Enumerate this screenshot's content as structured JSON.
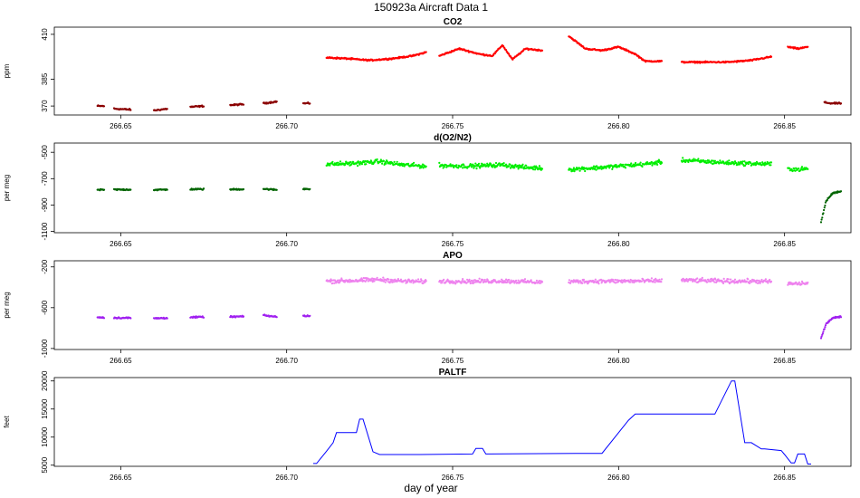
{
  "figure": {
    "title": "150923a   Aircraft Data 1",
    "xlabel": "day of year"
  },
  "chart_data": [
    {
      "type": "scatter",
      "title": "CO2",
      "ylabel": "ppm",
      "xlim": [
        266.63,
        266.87
      ],
      "ylim": [
        365,
        414
      ],
      "x_ticks": [
        "266.65",
        "266.70",
        "266.75",
        "266.80",
        "266.85"
      ],
      "y_ticks": [
        "370",
        "385",
        "410"
      ],
      "y_tick_values": [
        370,
        385,
        410
      ],
      "segments": [
        {
          "x": [
            266.643,
            266.645
          ],
          "y": [
            370,
            370
          ],
          "color": "#8b0000"
        },
        {
          "x": [
            266.648,
            266.653
          ],
          "y": [
            368.5,
            368.0
          ],
          "color": "#8b0000"
        },
        {
          "x": [
            266.66,
            266.664
          ],
          "y": [
            367.5,
            368.5
          ],
          "color": "#8b0000"
        },
        {
          "x": [
            266.671,
            266.675
          ],
          "y": [
            369.5,
            370.0
          ],
          "color": "#8b0000"
        },
        {
          "x": [
            266.683,
            266.687
          ],
          "y": [
            370.5,
            371.0
          ],
          "color": "#8b0000"
        },
        {
          "x": [
            266.693,
            266.697
          ],
          "y": [
            371.5,
            372.5
          ],
          "color": "#8b0000"
        },
        {
          "x": [
            266.705,
            266.707
          ],
          "y": [
            371.5,
            371.5
          ],
          "color": "#8b0000"
        },
        {
          "x": [
            266.712,
            266.718,
            266.725,
            266.732,
            266.738,
            266.742
          ],
          "y": [
            397,
            396.5,
            395.5,
            396.5,
            398,
            400
          ],
          "color": "#ff0000"
        },
        {
          "x": [
            266.746,
            266.752,
            266.758,
            266.762,
            266.765,
            266.768,
            266.772,
            266.777
          ],
          "y": [
            398,
            402,
            399,
            398,
            404,
            396,
            402,
            401
          ],
          "color": "#ff0000"
        },
        {
          "x": [
            266.785,
            266.79,
            266.795,
            266.8,
            266.805,
            266.808,
            266.813
          ],
          "y": [
            409,
            402,
            401,
            403,
            399,
            395,
            395
          ],
          "color": "#ff0000"
        },
        {
          "x": [
            266.819,
            266.826,
            266.833,
            266.84,
            266.846
          ],
          "y": [
            394.5,
            394.5,
            394.5,
            395.5,
            397.5
          ],
          "color": "#ff0000"
        },
        {
          "x": [
            266.851,
            266.854,
            266.857
          ],
          "y": [
            403,
            402,
            403
          ],
          "color": "#ff0000"
        },
        {
          "x": [
            266.862,
            266.864,
            266.867
          ],
          "y": [
            372,
            371.5,
            371.5
          ],
          "color": "#8b0000"
        }
      ]
    },
    {
      "type": "scatter",
      "title": "d(O2/N2)",
      "ylabel": "per meg",
      "xlim": [
        266.63,
        266.87
      ],
      "ylim": [
        -1110,
        -430
      ],
      "x_ticks": [
        "266.65",
        "266.70",
        "266.75",
        "266.80",
        "266.85"
      ],
      "y_ticks": [
        "-1100",
        "-900",
        "-700",
        "-500"
      ],
      "y_tick_values": [
        -1100,
        -900,
        -700,
        -500
      ],
      "segments": [
        {
          "x": [
            266.643,
            266.645
          ],
          "y": [
            -785,
            -785
          ],
          "color": "#006400"
        },
        {
          "x": [
            266.648,
            266.653
          ],
          "y": [
            -783,
            -783
          ],
          "color": "#006400"
        },
        {
          "x": [
            266.66,
            266.664
          ],
          "y": [
            -785,
            -783
          ],
          "color": "#006400"
        },
        {
          "x": [
            266.671,
            266.675
          ],
          "y": [
            -780,
            -780
          ],
          "color": "#006400"
        },
        {
          "x": [
            266.683,
            266.687
          ],
          "y": [
            -782,
            -780
          ],
          "color": "#006400"
        },
        {
          "x": [
            266.693,
            266.697
          ],
          "y": [
            -778,
            -785
          ],
          "color": "#006400"
        },
        {
          "x": [
            266.705,
            266.707
          ],
          "y": [
            -778,
            -778
          ],
          "color": "#006400"
        },
        {
          "x": [
            266.712,
            266.72,
            266.728,
            266.735,
            266.742
          ],
          "y": [
            -590,
            -585,
            -570,
            -595,
            -605
          ],
          "color": "#00ee00"
        },
        {
          "x": [
            266.746,
            266.755,
            266.765,
            266.772,
            266.777
          ],
          "y": [
            -600,
            -605,
            -595,
            -615,
            -620
          ],
          "color": "#00ee00"
        },
        {
          "x": [
            266.785,
            266.792,
            266.8,
            266.808,
            266.813
          ],
          "y": [
            -630,
            -620,
            -605,
            -590,
            -575
          ],
          "color": "#00ee00"
        },
        {
          "x": [
            266.819,
            266.826,
            266.833,
            266.84,
            266.846
          ],
          "y": [
            -560,
            -570,
            -580,
            -585,
            -590
          ],
          "color": "#00ee00"
        },
        {
          "x": [
            266.851,
            266.854,
            266.857
          ],
          "y": [
            -625,
            -630,
            -625
          ],
          "color": "#00ee00"
        },
        {
          "x": [
            266.861,
            266.8625,
            266.8645,
            266.867
          ],
          "y": [
            -1030,
            -870,
            -810,
            -795
          ],
          "color": "#006400"
        }
      ]
    },
    {
      "type": "scatter",
      "title": "APO",
      "ylabel": "per meg",
      "xlim": [
        266.63,
        266.87
      ],
      "ylim": [
        -1010,
        -140
      ],
      "x_ticks": [
        "266.65",
        "266.70",
        "266.75",
        "266.80",
        "266.85"
      ],
      "y_ticks": [
        "-1000",
        "-600",
        "-200"
      ],
      "y_tick_values": [
        -1000,
        -600,
        -200
      ],
      "segments": [
        {
          "x": [
            266.643,
            266.645
          ],
          "y": [
            -695,
            -695
          ],
          "color": "#a020f0"
        },
        {
          "x": [
            266.648,
            266.653
          ],
          "y": [
            -700,
            -700
          ],
          "color": "#a020f0"
        },
        {
          "x": [
            266.66,
            266.664
          ],
          "y": [
            -705,
            -700
          ],
          "color": "#a020f0"
        },
        {
          "x": [
            266.671,
            266.675
          ],
          "y": [
            -695,
            -690
          ],
          "color": "#a020f0"
        },
        {
          "x": [
            266.683,
            266.687
          ],
          "y": [
            -690,
            -685
          ],
          "color": "#a020f0"
        },
        {
          "x": [
            266.693,
            266.697
          ],
          "y": [
            -675,
            -690
          ],
          "color": "#a020f0"
        },
        {
          "x": [
            266.705,
            266.707
          ],
          "y": [
            -680,
            -680
          ],
          "color": "#a020f0"
        },
        {
          "x": [
            266.712,
            266.72,
            266.728,
            266.735,
            266.742
          ],
          "y": [
            -340,
            -335,
            -325,
            -340,
            -345
          ],
          "color": "#ee82ee"
        },
        {
          "x": [
            266.746,
            266.755,
            266.765,
            266.772,
            266.777
          ],
          "y": [
            -340,
            -342,
            -338,
            -345,
            -350
          ],
          "color": "#ee82ee"
        },
        {
          "x": [
            266.785,
            266.792,
            266.8,
            266.808,
            266.813
          ],
          "y": [
            -345,
            -340,
            -340,
            -338,
            -335
          ],
          "color": "#ee82ee"
        },
        {
          "x": [
            266.819,
            266.826,
            266.833,
            266.84,
            266.846
          ],
          "y": [
            -330,
            -335,
            -340,
            -340,
            -345
          ],
          "color": "#ee82ee"
        },
        {
          "x": [
            266.851,
            266.854,
            266.857
          ],
          "y": [
            -365,
            -365,
            -360
          ],
          "color": "#ee82ee"
        },
        {
          "x": [
            266.861,
            266.8625,
            266.8645,
            266.867
          ],
          "y": [
            -900,
            -760,
            -700,
            -690
          ],
          "color": "#a020f0"
        }
      ]
    },
    {
      "type": "line",
      "title": "PALTF",
      "ylabel": "feet",
      "xlim": [
        266.63,
        266.87
      ],
      "ylim": [
        4800,
        20600
      ],
      "x_ticks": [
        "266.65",
        "266.70",
        "266.75",
        "266.80",
        "266.85"
      ],
      "y_ticks": [
        "5000",
        "10000",
        "15000",
        "20000"
      ],
      "y_tick_values": [
        5000,
        10000,
        15000,
        20000
      ],
      "color": "#0000ff",
      "x": [
        266.708,
        266.709,
        266.712,
        266.714,
        266.715,
        266.721,
        266.722,
        266.723,
        266.726,
        266.728,
        266.74,
        266.756,
        266.757,
        266.759,
        266.76,
        266.79,
        266.795,
        266.803,
        266.805,
        266.81,
        266.82,
        266.829,
        266.834,
        266.835,
        266.838,
        266.84,
        266.843,
        266.844,
        266.849,
        266.85,
        266.852,
        266.853,
        266.854,
        266.856,
        266.857,
        266.858
      ],
      "y": [
        5300,
        5300,
        7500,
        9000,
        10800,
        10800,
        13200,
        13200,
        7400,
        6900,
        6900,
        7000,
        8000,
        8000,
        7000,
        7100,
        7100,
        13000,
        14100,
        14100,
        14100,
        14100,
        20000,
        20000,
        9000,
        9000,
        7900,
        7900,
        7600,
        6900,
        5400,
        5400,
        7000,
        7000,
        5200,
        5200
      ]
    }
  ]
}
